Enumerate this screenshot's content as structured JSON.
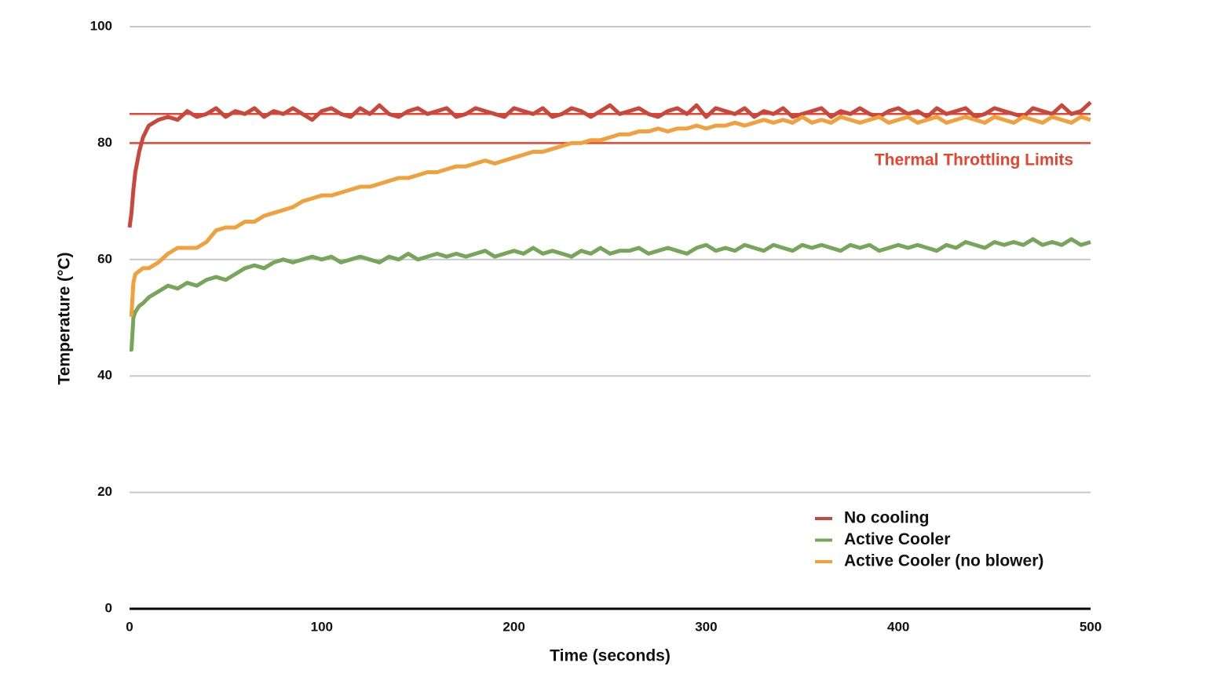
{
  "chart_data": {
    "type": "line",
    "x_label": "Time (seconds)",
    "y_label": "Temperature (°C)",
    "x": [
      0,
      1,
      2,
      3,
      5,
      7,
      10,
      15,
      20,
      25,
      30,
      35,
      40,
      45,
      50,
      55,
      60,
      65,
      70,
      75,
      80,
      85,
      90,
      95,
      100,
      105,
      110,
      115,
      120,
      125,
      130,
      135,
      140,
      145,
      150,
      155,
      160,
      165,
      170,
      175,
      180,
      185,
      190,
      195,
      200,
      205,
      210,
      215,
      220,
      225,
      230,
      235,
      240,
      245,
      250,
      255,
      260,
      265,
      270,
      275,
      280,
      285,
      290,
      295,
      300,
      305,
      310,
      315,
      320,
      325,
      330,
      335,
      340,
      345,
      350,
      355,
      360,
      365,
      370,
      375,
      380,
      385,
      390,
      395,
      400,
      405,
      410,
      415,
      420,
      425,
      430,
      435,
      440,
      445,
      450,
      455,
      460,
      465,
      470,
      475,
      480,
      485,
      490,
      495,
      500
    ],
    "series": [
      {
        "name": "No cooling",
        "color": "#c9473b",
        "values": [
          65.5,
          68,
          72,
          75,
          78.5,
          81,
          83,
          84,
          84.5,
          84,
          85.5,
          84.5,
          85,
          86,
          84.5,
          85.5,
          85,
          86,
          84.5,
          85.5,
          85,
          86,
          85,
          84,
          85.5,
          86,
          85,
          84.5,
          86,
          85,
          86.5,
          85,
          84.5,
          85.5,
          86,
          85,
          85.5,
          86,
          84.5,
          85,
          86,
          85.5,
          85,
          84.5,
          86,
          85.5,
          85,
          86,
          84.5,
          85,
          86,
          85.5,
          84.5,
          85.5,
          86.5,
          85,
          85.5,
          86,
          85,
          84.5,
          85.5,
          86,
          85,
          86.5,
          84.5,
          86,
          85.5,
          85,
          86,
          84.5,
          85.5,
          85,
          86,
          84.5,
          85,
          85.5,
          86,
          84.5,
          85.5,
          85,
          86,
          85,
          84.5,
          85.5,
          86,
          85,
          85.5,
          84.5,
          86,
          85,
          85.5,
          86,
          84.5,
          85,
          86,
          85.5,
          85,
          84.5,
          86,
          85.5,
          85,
          86.5,
          85,
          85.5,
          87
        ]
      },
      {
        "name": "Active Cooler",
        "color": "#77a65a",
        "values": [
          44.5,
          44.5,
          50,
          51,
          52,
          52.5,
          53.5,
          54.5,
          55.5,
          55,
          56,
          55.5,
          56.5,
          57,
          56.5,
          57.5,
          58.5,
          59,
          58.5,
          59.5,
          60,
          59.5,
          60,
          60.5,
          60,
          60.5,
          59.5,
          60,
          60.5,
          60,
          59.5,
          60.5,
          60,
          61,
          60,
          60.5,
          61,
          60.5,
          61,
          60.5,
          61,
          61.5,
          60.5,
          61,
          61.5,
          61,
          62,
          61,
          61.5,
          61,
          60.5,
          61.5,
          61,
          62,
          61,
          61.5,
          61.5,
          62,
          61,
          61.5,
          62,
          61.5,
          61,
          62,
          62.5,
          61.5,
          62,
          61.5,
          62.5,
          62,
          61.5,
          62.5,
          62,
          61.5,
          62.5,
          62,
          62.5,
          62,
          61.5,
          62.5,
          62,
          62.5,
          61.5,
          62,
          62.5,
          62,
          62.5,
          62,
          61.5,
          62.5,
          62,
          63,
          62.5,
          62,
          63,
          62.5,
          63,
          62.5,
          63.5,
          62.5,
          63,
          62.5,
          63.5,
          62.5,
          63
        ]
      },
      {
        "name": "Active Cooler (no blower)",
        "color": "#f0a03c",
        "values": [
          50.5,
          50.5,
          56,
          57.5,
          58,
          58.5,
          58.5,
          59.5,
          61,
          62,
          62,
          62,
          63,
          65,
          65.5,
          65.5,
          66.5,
          66.5,
          67.5,
          68,
          68.5,
          69,
          70,
          70.5,
          71,
          71,
          71.5,
          72,
          72.5,
          72.5,
          73,
          73.5,
          74,
          74,
          74.5,
          75,
          75,
          75.5,
          76,
          76,
          76.5,
          77,
          76.5,
          77,
          77.5,
          78,
          78.5,
          78.5,
          79,
          79.5,
          80,
          80,
          80.5,
          80.5,
          81,
          81.5,
          81.5,
          82,
          82,
          82.5,
          82,
          82.5,
          82.5,
          83,
          82.5,
          83,
          83,
          83.5,
          83,
          83.5,
          84,
          83.5,
          84,
          83.5,
          84.5,
          83.5,
          84,
          83.5,
          84.5,
          84,
          83.5,
          84,
          84.5,
          83.5,
          84,
          84.5,
          83.5,
          84,
          84.5,
          83.5,
          84,
          84.5,
          84,
          83.5,
          84.5,
          84,
          83.5,
          84.5,
          84,
          83.5,
          84.5,
          84,
          83.5,
          84.5,
          84
        ]
      }
    ],
    "thresholds": {
      "label": "Thermal Throttling Limits",
      "color": "#e8432e",
      "values": [
        85,
        80
      ]
    },
    "xlim": [
      0,
      500
    ],
    "xticks": [
      0,
      100,
      200,
      300,
      400,
      500
    ],
    "ylim": [
      0,
      100
    ],
    "yticks": [
      0,
      20,
      40,
      60,
      80,
      100
    ],
    "grid": true,
    "legend": "lower-right"
  }
}
